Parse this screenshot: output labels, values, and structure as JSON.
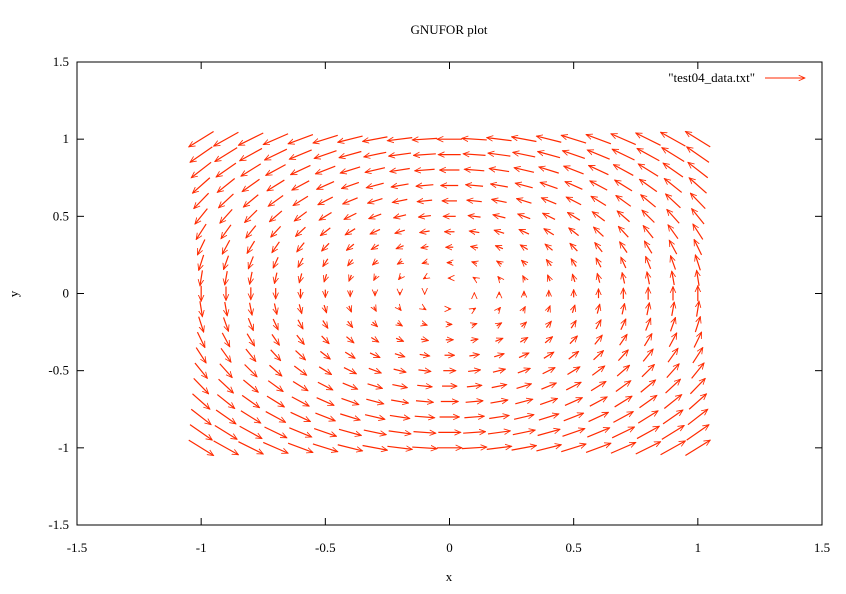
{
  "chart_data": {
    "type": "vector_field",
    "title": "GNUFOR plot",
    "xlabel": "x",
    "ylabel": "y",
    "xlim": [
      -1.5,
      1.5
    ],
    "ylim": [
      -1.5,
      1.5
    ],
    "xticks": [
      "-1.5",
      "-1",
      "-0.5",
      "0",
      "0.5",
      "1",
      "1.5"
    ],
    "yticks": [
      "1.5",
      "1",
      "0.5",
      "0",
      "-0.5",
      "-1",
      "-1.5"
    ],
    "grid": false,
    "legend_position": "top-right",
    "series": [
      {
        "name": "\"test04_data.txt\"",
        "color": "#ff2a00",
        "grid_x": [
          -1.0,
          -0.9,
          -0.8,
          -0.7,
          -0.6,
          -0.5,
          -0.4,
          -0.3,
          -0.2,
          -0.1,
          0.0,
          0.1,
          0.2,
          0.3,
          0.4,
          0.5,
          0.6,
          0.7,
          0.8,
          0.9,
          1.0
        ],
        "grid_y": [
          -1.0,
          -0.9,
          -0.8,
          -0.7,
          -0.6,
          -0.5,
          -0.4,
          -0.3,
          -0.2,
          -0.1,
          0.0,
          0.1,
          0.2,
          0.3,
          0.4,
          0.5,
          0.6,
          0.7,
          0.8,
          0.9,
          1.0
        ],
        "field": {
          "u": "-y",
          "v": "x"
        },
        "arrow_scale": 0.1
      }
    ]
  }
}
